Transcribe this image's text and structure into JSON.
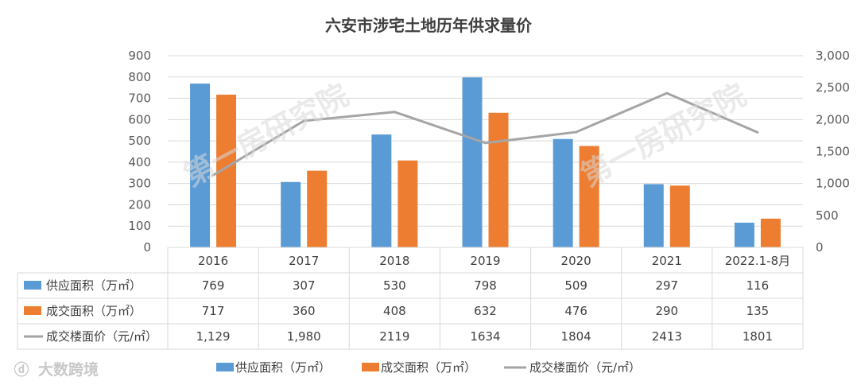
{
  "chart_data": {
    "type": "bar",
    "title": "六安市涉宅土地历年供求量价",
    "categories": [
      "2016",
      "2017",
      "2018",
      "2019",
      "2020",
      "2021",
      "2022.1-8月"
    ],
    "series": [
      {
        "name": "供应面积（万㎡）",
        "type": "bar",
        "axis": "left",
        "color": "#5b9bd5",
        "values": [
          769,
          307,
          530,
          798,
          509,
          297,
          116
        ],
        "labels": [
          "769",
          "307",
          "530",
          "798",
          "509",
          "297",
          "116"
        ]
      },
      {
        "name": "成交面积（万㎡）",
        "type": "bar",
        "axis": "left",
        "color": "#ed7d31",
        "values": [
          717,
          360,
          408,
          632,
          476,
          290,
          135
        ],
        "labels": [
          "717",
          "360",
          "408",
          "632",
          "476",
          "290",
          "135"
        ]
      },
      {
        "name": "成交楼面价（元/㎡）",
        "type": "line",
        "axis": "right",
        "color": "#a5a5a5",
        "values": [
          1129,
          1980,
          2119,
          1634,
          1804,
          2413,
          1801
        ],
        "labels": [
          "1,129",
          "1,980",
          "2119",
          "1634",
          "1804",
          "2413",
          "1801"
        ]
      }
    ],
    "left_axis": {
      "min": 0,
      "max": 900,
      "ticks": [
        "0",
        "100",
        "200",
        "300",
        "400",
        "500",
        "600",
        "700",
        "800",
        "900"
      ]
    },
    "right_axis": {
      "min": 0,
      "max": 3000,
      "ticks": [
        "0",
        "500",
        "1,000",
        "1,500",
        "2,000",
        "2,500",
        "3,000"
      ]
    },
    "legend_position": "bottom",
    "grid": true
  },
  "watermark": "第一房研究院",
  "brand": {
    "icon": "ⓓ",
    "name": "大数跨境"
  }
}
